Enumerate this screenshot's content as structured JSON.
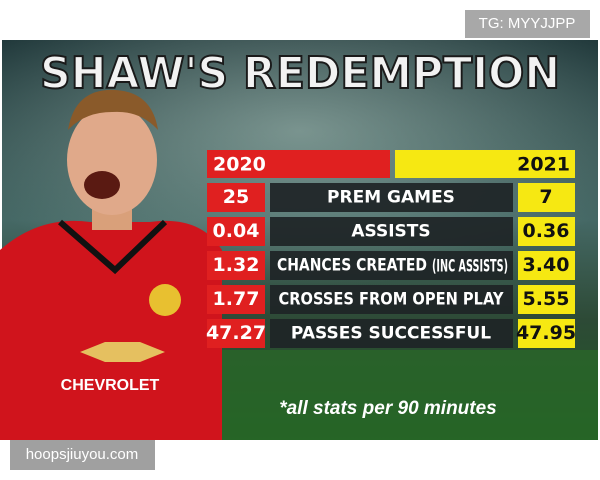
{
  "watermark_top": "TG: MYYJJPP",
  "title": "SHAW'S REDEMPTION",
  "header": {
    "left": "2020",
    "right": "2021"
  },
  "rows": [
    {
      "label": "PREM GAMES",
      "left": "25",
      "right": "7"
    },
    {
      "label": "ASSISTS",
      "left": "0.04",
      "right": "0.36"
    },
    {
      "label": "CHANCES CREATED",
      "note": "(INC ASSISTS)",
      "left": "1.32",
      "right": "3.40"
    },
    {
      "label": "CROSSES FROM OPEN PLAY",
      "left": "1.77",
      "right": "5.55"
    },
    {
      "label": "PASSES SUCCESSFUL",
      "left": "47.27",
      "right": "47.95"
    }
  ],
  "sponsor": "CHEVROLET",
  "footnote": "*all stats per 90 minutes",
  "watermark_bottom": "hoopsjiuyou.com"
}
